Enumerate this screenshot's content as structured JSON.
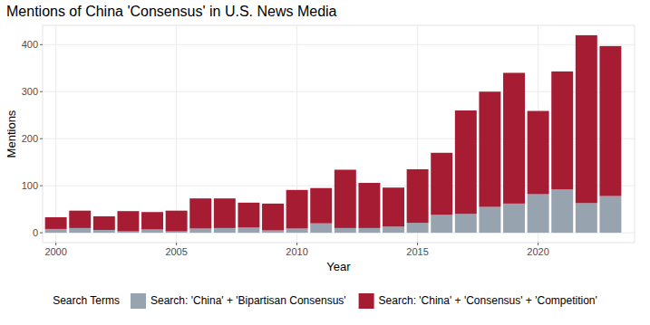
{
  "chart_data": {
    "type": "bar",
    "stacked": true,
    "title": "Mentions of China 'Consensus' in U.S. News Media",
    "x_label": "Year",
    "y_label": "Mentions",
    "legend_title": "Search Terms",
    "legend": "bottom",
    "grid": true,
    "x": [
      2000,
      2001,
      2002,
      2003,
      2004,
      2005,
      2006,
      2007,
      2008,
      2009,
      2010,
      2011,
      2012,
      2013,
      2014,
      2015,
      2016,
      2017,
      2018,
      2019,
      2020,
      2021,
      2022,
      2023
    ],
    "xlim": [
      1999.45,
      2024.0
    ],
    "xticks": [
      2000,
      2005,
      2010,
      2015,
      2020
    ],
    "ylim": [
      -21,
      441
    ],
    "yticks": [
      0,
      100,
      200,
      300,
      400
    ],
    "series": [
      {
        "name": "Search: 'China' + 'Bipartisan Consensus'",
        "color": "#97a3ae",
        "values": [
          8,
          10,
          6,
          3,
          7,
          3,
          9,
          10,
          11,
          5,
          9,
          20,
          10,
          10,
          13,
          21,
          38,
          40,
          55,
          62,
          82,
          92,
          63,
          78
        ]
      },
      {
        "name": "Search: 'China' + 'Consensus' + 'Competition'",
        "color": "#a61c33",
        "values": [
          25,
          37,
          29,
          43,
          37,
          44,
          64,
          63,
          53,
          57,
          82,
          75,
          124,
          96,
          83,
          114,
          132,
          220,
          245,
          278,
          177,
          251,
          357,
          319
        ]
      }
    ]
  }
}
